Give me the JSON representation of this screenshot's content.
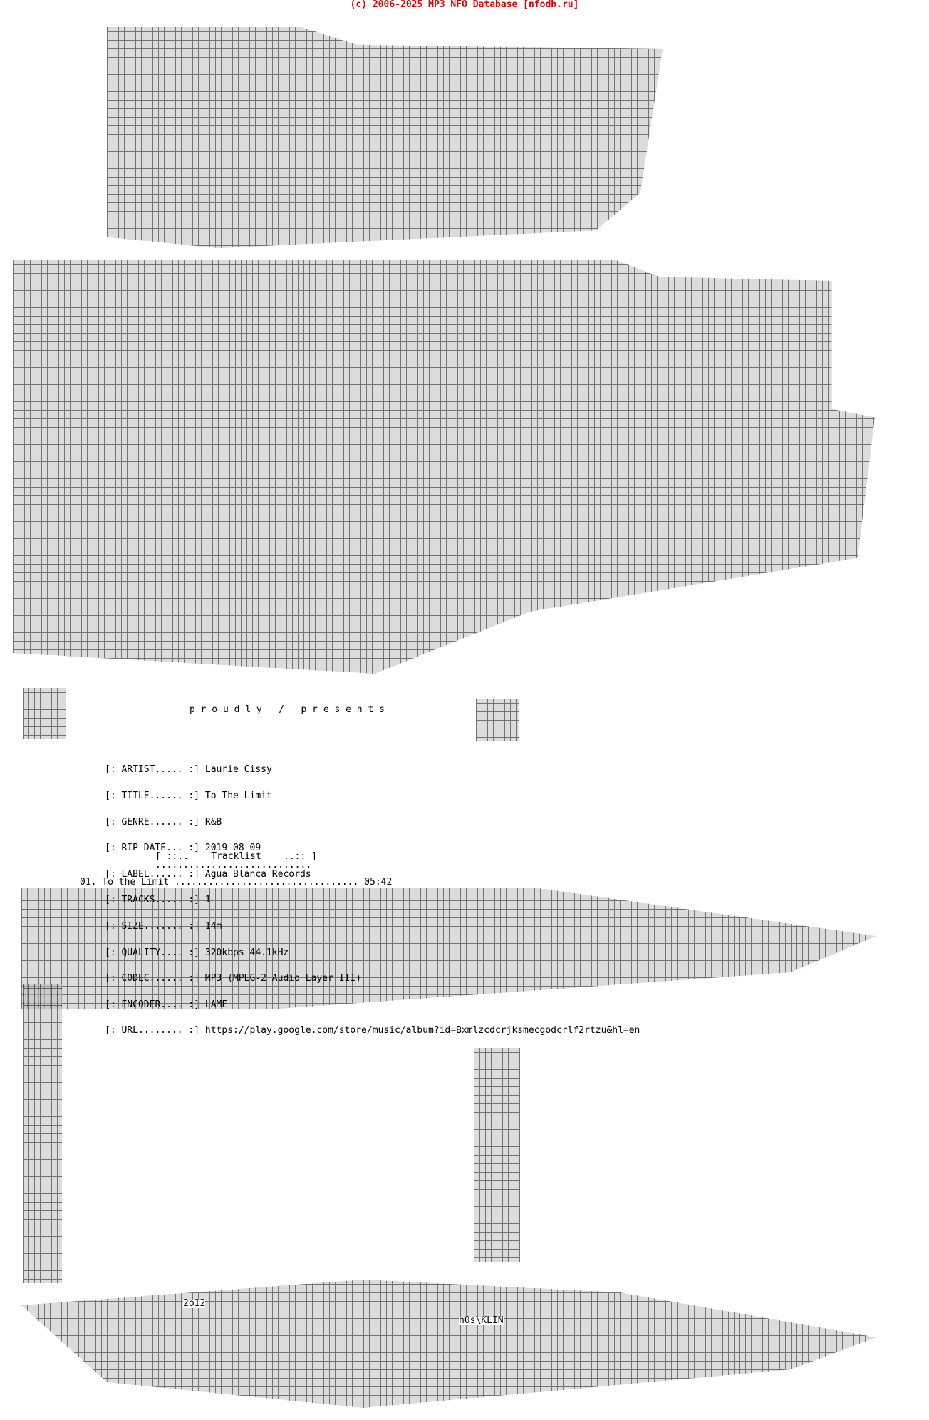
{
  "header": "(c) 2006-2025 MP3 NFO Database [nfodb.ru]",
  "header_color": "#e00000",
  "presents": "p r o u d l y   /   p r e s e n t s",
  "info": [
    {
      "key": "[: ARTIST..... :]",
      "value": "Laurie Cissy"
    },
    {
      "key": "[: TITLE...... :]",
      "value": "To The Limit"
    },
    {
      "key": "[: GENRE...... :]",
      "value": "R&B"
    },
    {
      "key": "[: RIP DATE... :]",
      "value": "2019-08-09"
    },
    {
      "key": "[: LABEL...... :]",
      "value": "Agua Blanca Records"
    },
    {
      "key": "[: TRACKS..... :]",
      "value": "1"
    },
    {
      "key": "[: SIZE....... :]",
      "value": "14m"
    },
    {
      "key": "[: QUALITY.... :]",
      "value": "320kbps 44.1kHz"
    },
    {
      "key": "[: CODEC...... :]",
      "value": "MP3 (MPEG-2 Audio Layer III)"
    },
    {
      "key": "[: ENCODER.... :]",
      "value": "LAME"
    },
    {
      "key": "[: URL........ :]",
      "value": "https://play.google.com/store/music/album?id=Bxmlzcdcrjksmecgodcrlf2rtzu&hl=en"
    }
  ],
  "tracklist_header": "[ ::..    Tracklist    ..:: ]",
  "tracklist_dots": "............................",
  "tracks": [
    {
      "line": "01. To the Limit ................................. 05:42"
    }
  ],
  "art_signature_year": "2o12",
  "art_signature": "n0s\\KLIN"
}
